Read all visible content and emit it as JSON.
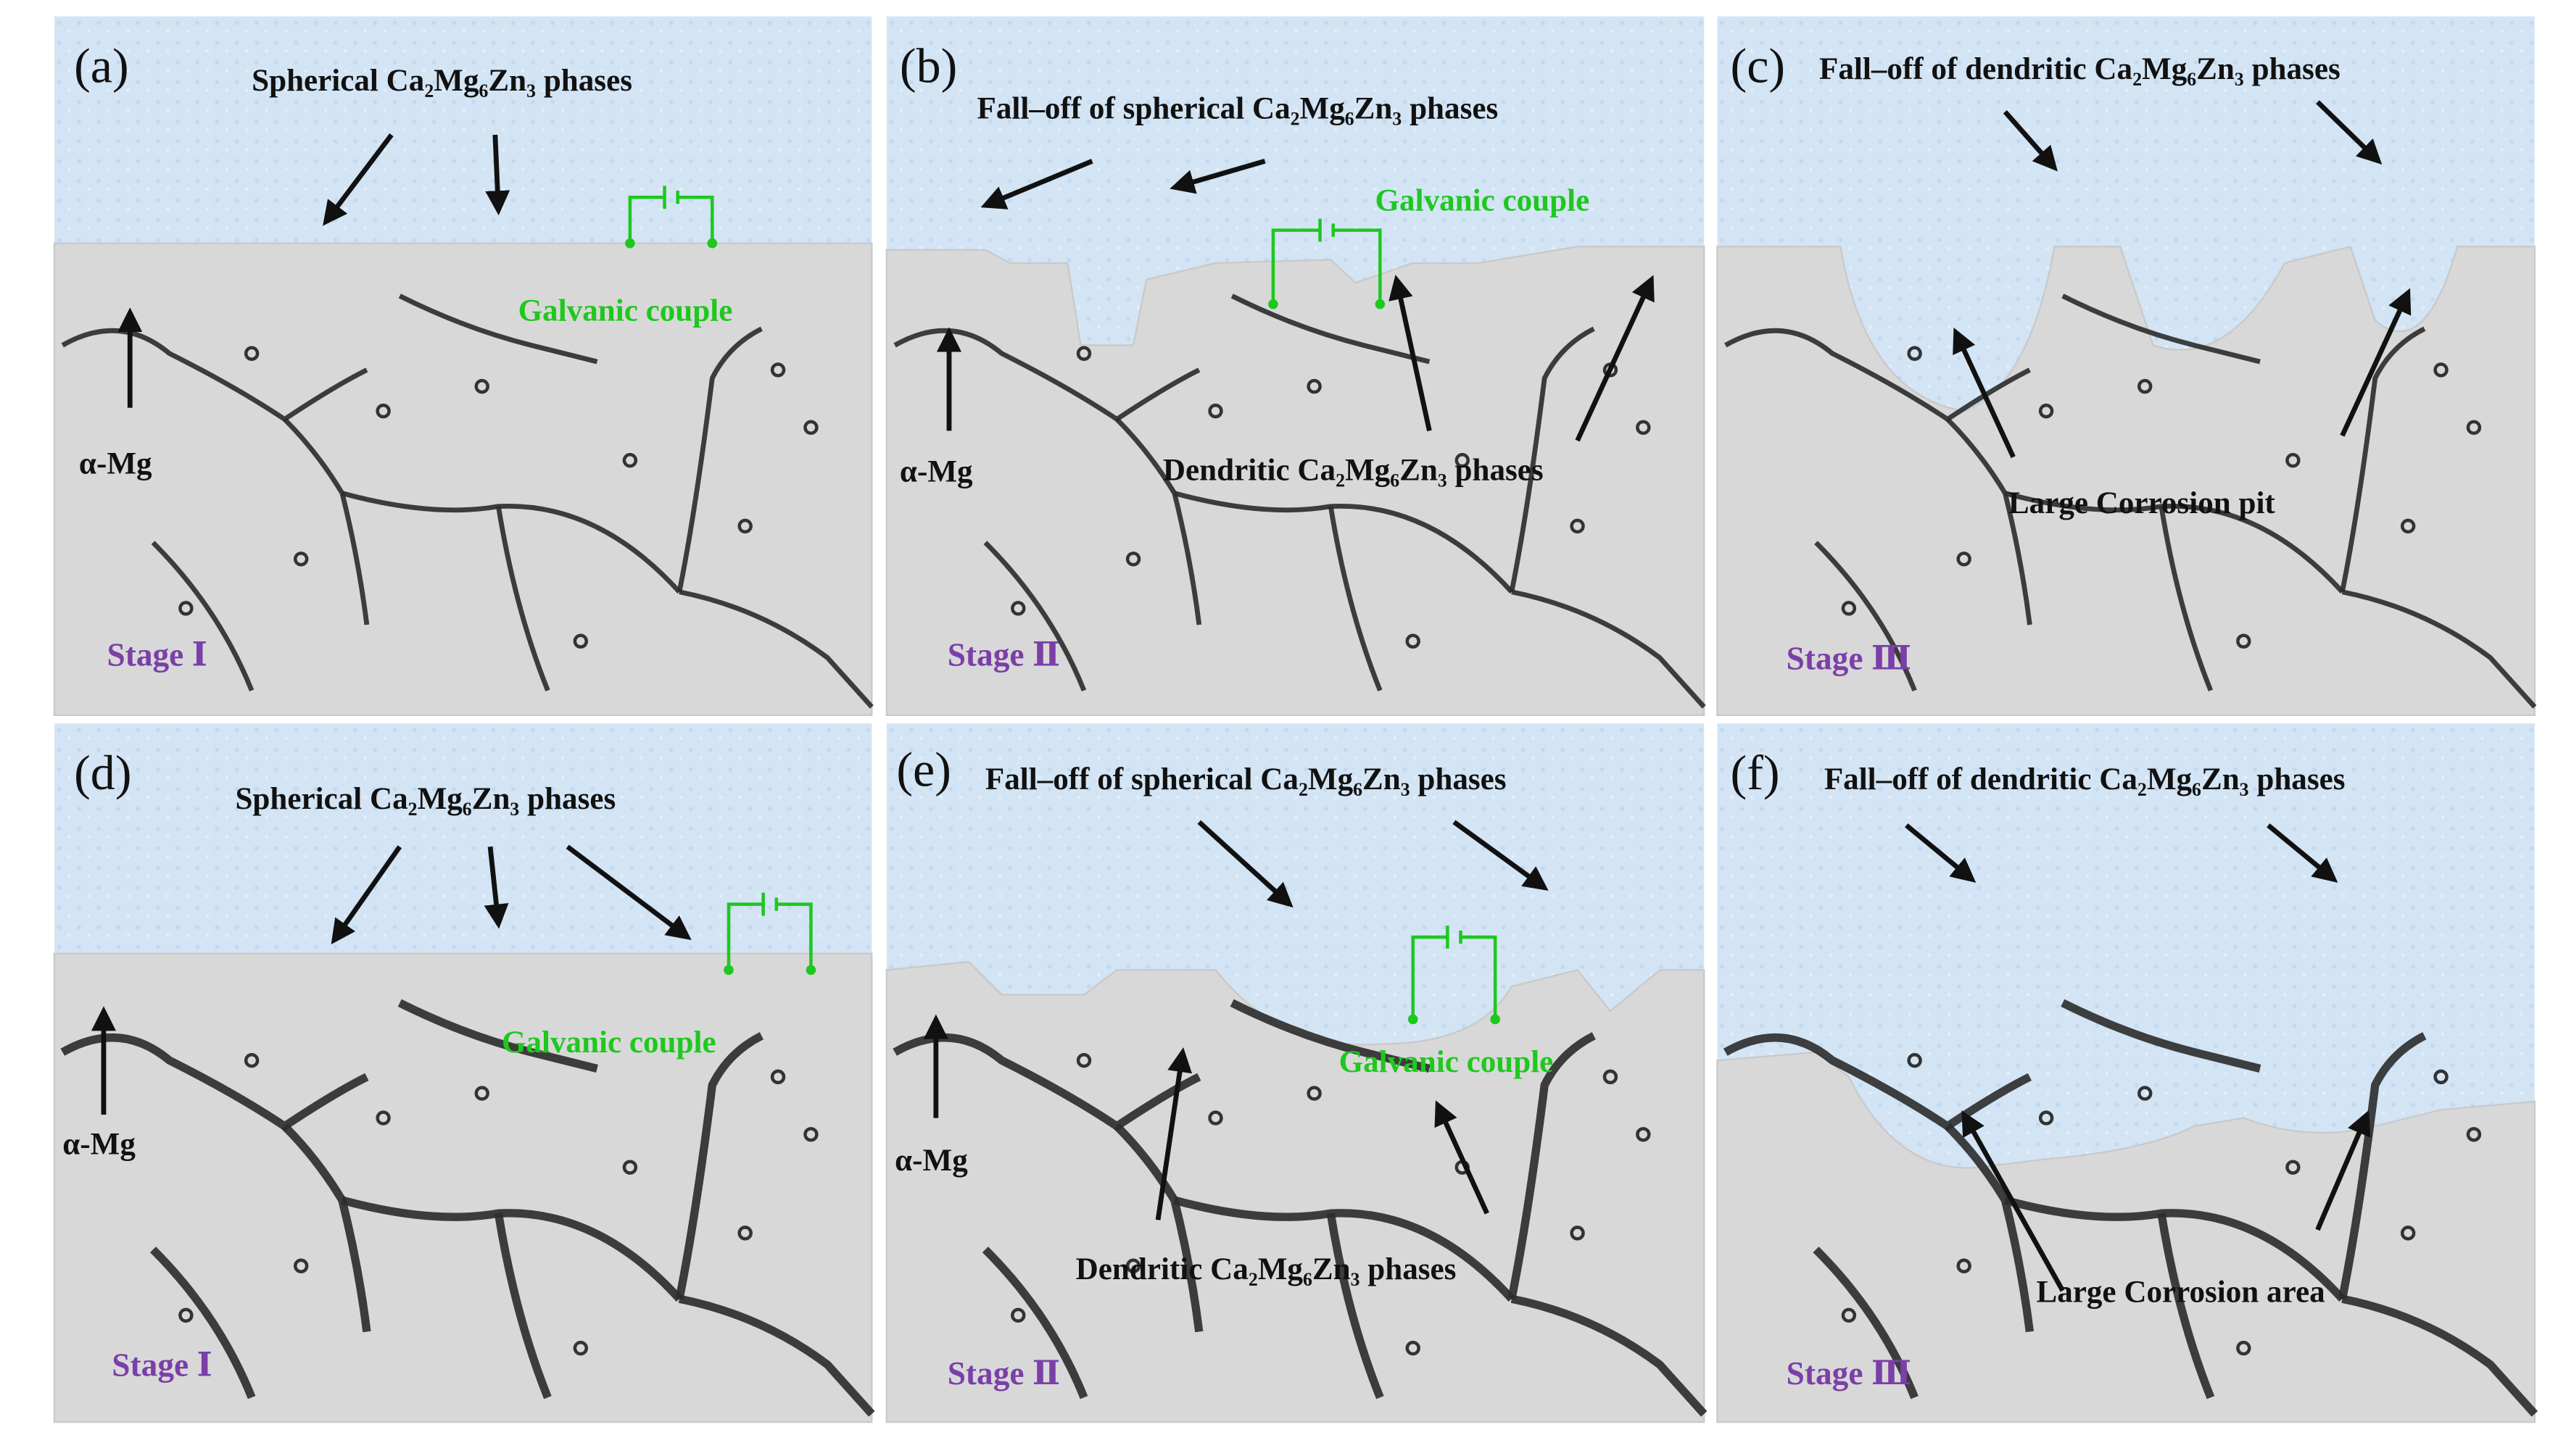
{
  "panels": [
    {
      "label": "(a)",
      "phase": "Spherical Ca₂Mg₆Zn₃ phases",
      "couple": "Galvanic couple",
      "matrix": "α-Mg",
      "stage": "Stage Ⅰ"
    },
    {
      "label": "(b)",
      "phase": "Fall–off of spherical Ca₂Mg₆Zn₃ phases",
      "couple": "Galvanic couple",
      "matrix": "α-Mg",
      "dendritic": "Dendritic Ca₂Mg₆Zn₃ phases",
      "stage": "Stage Ⅱ"
    },
    {
      "label": "(c)",
      "phase": "Fall–off of dendritic Ca₂Mg₆Zn₃ phases",
      "corrosion": "Large Corrosion pit",
      "stage": "Stage Ⅲ"
    },
    {
      "label": "(d)",
      "phase": "Spherical Ca₂Mg₆Zn₃ phases",
      "couple": "Galvanic couple",
      "matrix": "α-Mg",
      "stage": "Stage Ⅰ"
    },
    {
      "label": "(e)",
      "phase": "Fall–off of spherical Ca₂Mg₆Zn₃ phases",
      "couple": "Galvanic couple",
      "matrix": "α-Mg",
      "dendritic": "Dendritic Ca₂Mg₆Zn₃ phases",
      "stage": "Stage Ⅱ"
    },
    {
      "label": "(f)",
      "phase": "Fall–off of dendritic Ca₂Mg₆Zn₃ phases",
      "corrosion": "Large Corrosion area",
      "stage": "Stage Ⅲ"
    }
  ]
}
